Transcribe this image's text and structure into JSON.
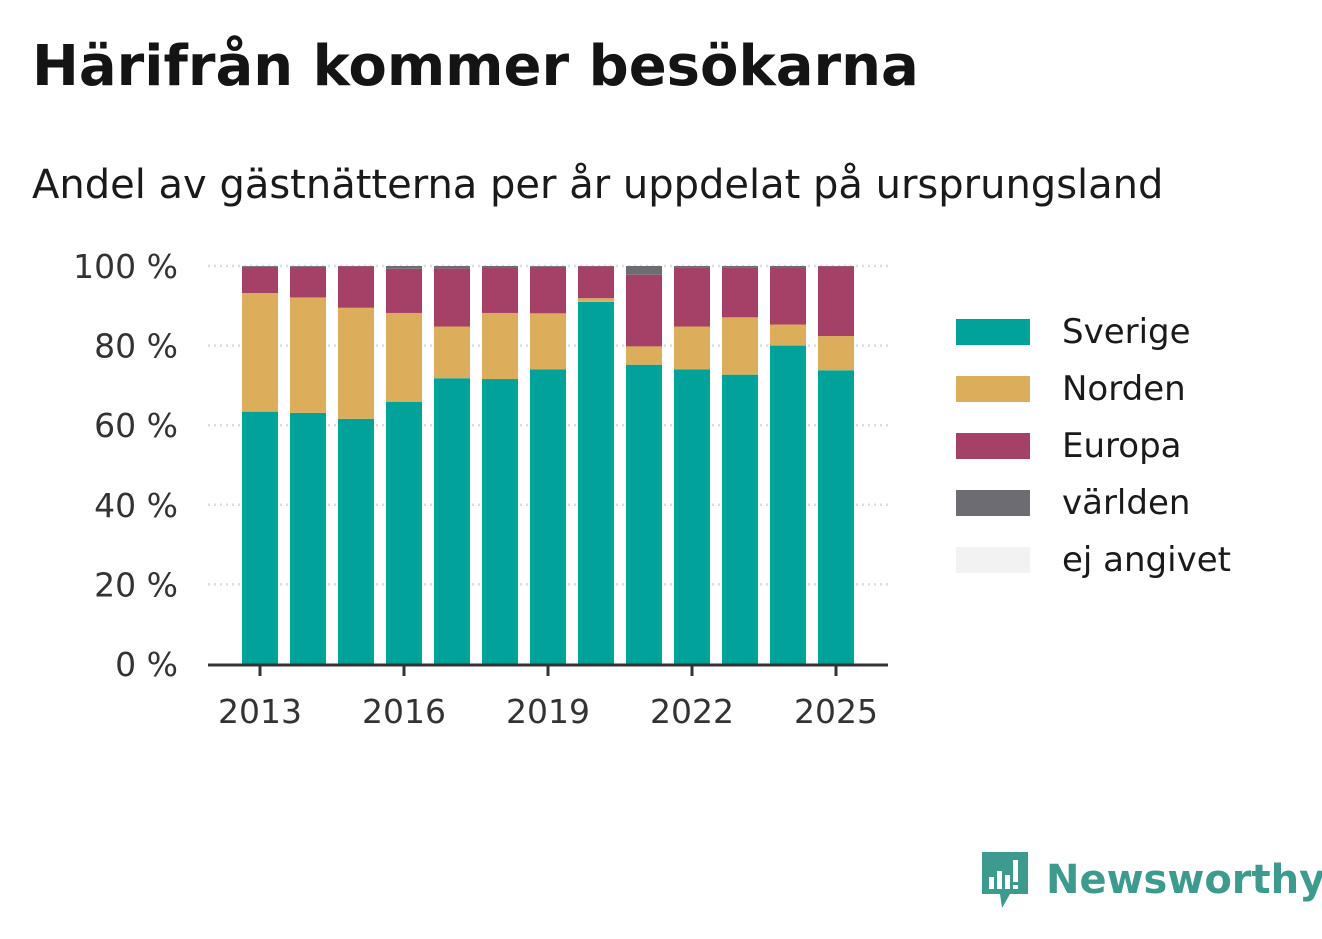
{
  "title": "Härifrån kommer besökarna",
  "subtitle": "Andel av gästnätterna per år uppdelat på ursprungsland",
  "brand": {
    "name": "Newsworthy",
    "icon": "newsworthy-logo-icon"
  },
  "colors": {
    "Sverige": "#00a29a",
    "Norden": "#dcae5b",
    "Europa": "#a54066",
    "världen": "#6c6c72",
    "ej angivet": "#f2f2f2",
    "grid": "#dcdcdc",
    "axis": "#333333"
  },
  "chart_data": {
    "type": "bar",
    "stacked": true,
    "x": [
      2013,
      2014,
      2015,
      2016,
      2017,
      2018,
      2019,
      2020,
      2021,
      2022,
      2023,
      2024,
      2025
    ],
    "x_tick_labels": [
      "2013",
      "2016",
      "2019",
      "2022",
      "2025"
    ],
    "y_tick_labels": [
      "0 %",
      "20 %",
      "40 %",
      "60 %",
      "80 %",
      "100 %"
    ],
    "ylim": [
      0,
      100
    ],
    "grid": true,
    "legend_position": "right",
    "series": [
      {
        "name": "Sverige",
        "values": [
          63.4,
          63.1,
          61.6,
          65.9,
          71.8,
          71.6,
          74.0,
          91.0,
          75.2,
          74.0,
          72.7,
          80.0,
          73.8
        ]
      },
      {
        "name": "Norden",
        "values": [
          29.8,
          29.0,
          27.9,
          22.3,
          13.0,
          16.6,
          14.1,
          0.9,
          4.6,
          10.8,
          14.4,
          5.3,
          8.6
        ]
      },
      {
        "name": "Europa",
        "values": [
          6.6,
          7.7,
          10.4,
          11.1,
          14.6,
          11.3,
          11.7,
          8.0,
          18.0,
          14.8,
          12.6,
          14.2,
          17.5
        ]
      },
      {
        "name": "världen",
        "values": [
          0.2,
          0.2,
          0.1,
          0.7,
          0.6,
          0.5,
          0.2,
          0.1,
          2.2,
          0.4,
          0.3,
          0.5,
          0.1
        ]
      },
      {
        "name": "ej angivet",
        "values": [
          0,
          0,
          0,
          0,
          0,
          0,
          0,
          0,
          0,
          0,
          0,
          0,
          0
        ]
      }
    ]
  }
}
